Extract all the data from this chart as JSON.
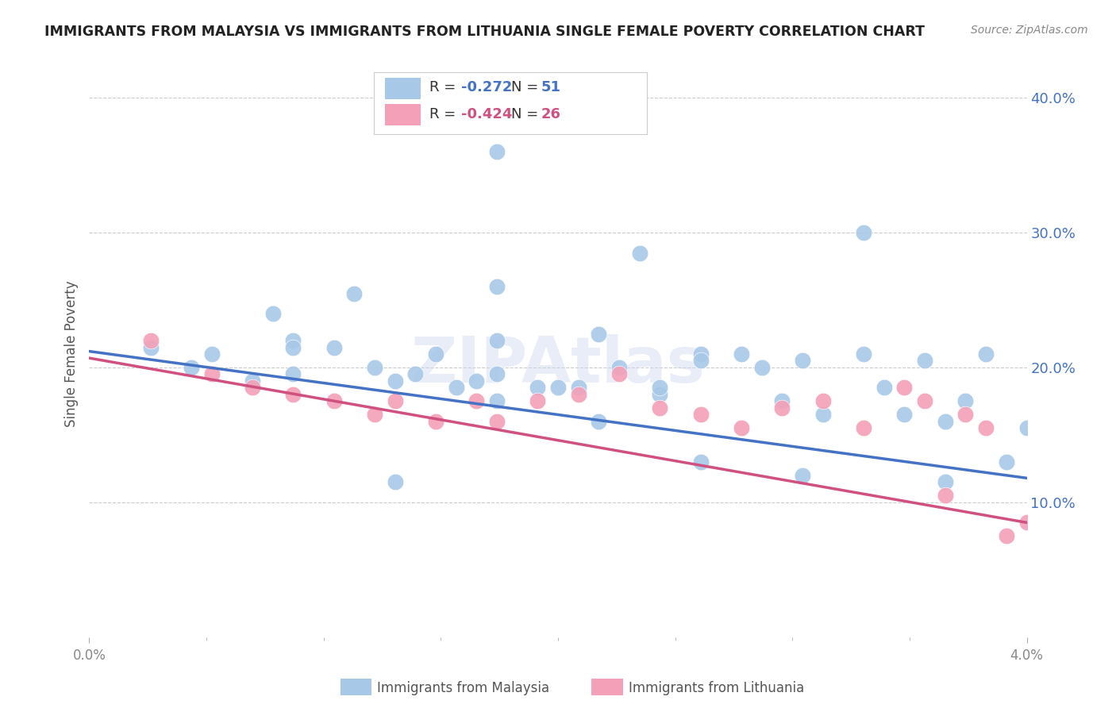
{
  "title": "IMMIGRANTS FROM MALAYSIA VS IMMIGRANTS FROM LITHUANIA SINGLE FEMALE POVERTY CORRELATION CHART",
  "source": "Source: ZipAtlas.com",
  "ylabel": "Single Female Poverty",
  "right_yticks": [
    "40.0%",
    "30.0%",
    "20.0%",
    "10.0%"
  ],
  "right_ytick_vals": [
    0.4,
    0.3,
    0.2,
    0.1
  ],
  "malaysia_color": "#a8c8e8",
  "malaysia_line_color": "#4472c4",
  "lithuania_color": "#f4a0b8",
  "lithuania_line_color": "#d05080",
  "background_color": "#ffffff",
  "grid_color": "#cccccc",
  "right_axis_color": "#4472c4",
  "tick_color": "#888888",
  "malaysia_scatter_x": [
    0.0003,
    0.0005,
    0.0006,
    0.0008,
    0.0009,
    0.001,
    0.001,
    0.0012,
    0.0013,
    0.0014,
    0.0015,
    0.0016,
    0.0017,
    0.0018,
    0.0019,
    0.002,
    0.002,
    0.0022,
    0.0023,
    0.0024,
    0.0025,
    0.0026,
    0.0028,
    0.0028,
    0.003,
    0.003,
    0.0032,
    0.0033,
    0.0034,
    0.0035,
    0.0036,
    0.0038,
    0.0039,
    0.004,
    0.0041,
    0.0042,
    0.0043,
    0.0044,
    0.0045,
    0.0046,
    0.002,
    0.0027,
    0.002,
    0.002,
    0.001,
    0.0015,
    0.0025,
    0.0035,
    0.0038,
    0.0042,
    0.003
  ],
  "malaysia_scatter_y": [
    0.215,
    0.2,
    0.21,
    0.19,
    0.24,
    0.22,
    0.195,
    0.215,
    0.255,
    0.2,
    0.19,
    0.195,
    0.21,
    0.185,
    0.19,
    0.195,
    0.22,
    0.185,
    0.185,
    0.185,
    0.225,
    0.2,
    0.18,
    0.185,
    0.13,
    0.21,
    0.21,
    0.2,
    0.175,
    0.205,
    0.165,
    0.21,
    0.185,
    0.165,
    0.205,
    0.16,
    0.175,
    0.21,
    0.13,
    0.155,
    0.36,
    0.285,
    0.26,
    0.175,
    0.215,
    0.115,
    0.16,
    0.12,
    0.3,
    0.115,
    0.205
  ],
  "lithuania_scatter_x": [
    0.0003,
    0.0006,
    0.0008,
    0.001,
    0.0012,
    0.0014,
    0.0015,
    0.0017,
    0.0019,
    0.002,
    0.0022,
    0.0024,
    0.0026,
    0.0028,
    0.003,
    0.0032,
    0.0034,
    0.0036,
    0.0038,
    0.004,
    0.0041,
    0.0042,
    0.0043,
    0.0044,
    0.0045,
    0.0046
  ],
  "lithuania_scatter_y": [
    0.22,
    0.195,
    0.185,
    0.18,
    0.175,
    0.165,
    0.175,
    0.16,
    0.175,
    0.16,
    0.175,
    0.18,
    0.195,
    0.17,
    0.165,
    0.155,
    0.17,
    0.175,
    0.155,
    0.185,
    0.175,
    0.105,
    0.165,
    0.155,
    0.075,
    0.085
  ],
  "malaysia_line_x": [
    0.0,
    0.0046
  ],
  "malaysia_line_y": [
    0.212,
    0.118
  ],
  "lithuania_line_x": [
    0.0,
    0.0046
  ],
  "lithuania_line_y": [
    0.207,
    0.085
  ],
  "xlim": [
    0.0,
    0.0046
  ],
  "ylim": [
    0.0,
    0.42
  ],
  "xtick_left_label": "0.0%",
  "xtick_right_label": "4.0%",
  "watermark": "ZIPAtlas",
  "legend_r1": "R = ",
  "legend_v1": "-0.272",
  "legend_n1": "   N = ",
  "legend_nv1": "51",
  "legend_r2": "R = ",
  "legend_v2": "-0.424",
  "legend_n2": "   N = ",
  "legend_nv2": "26",
  "bottom_label1": "Immigrants from Malaysia",
  "bottom_label2": "Immigrants from Lithuania"
}
